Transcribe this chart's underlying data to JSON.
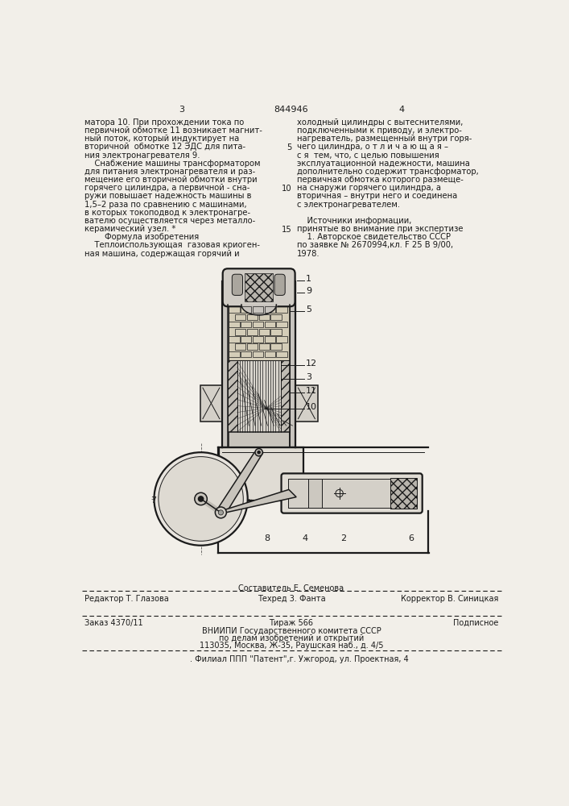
{
  "page_number_left": "3",
  "page_number_center": "844946",
  "page_number_right": "4",
  "bg_color": "#f2efe9",
  "text_color": "#1a1a1a",
  "left_column_text": [
    "матора 10. При прохождении тока по",
    "первичной обмотке 11 возникает магнит-",
    "ный поток, который индуктирует на",
    "вторичной  обмотке 12 ЭДС для пита-",
    "ния электронагревателя 9.",
    "    Снабжение машины трансформатором",
    "для питания электронагревателя и раз-",
    "мещение его вторичной обмотки внутри",
    "горячего цилиндра, а первичной - сна-",
    "ружи повышает надежность машины в",
    "1,5–2 раза по сравнению с машинами,",
    "в которых токоподвод к электронагре-",
    "вателю осуществляется через металло-",
    "керамический узел. *",
    "        Формула изобретения",
    "    Теплоиспользующая  газовая криоген-",
    "ная машина, содержащая горячий и"
  ],
  "right_column_text": [
    "холодный цилиндры с вытеснителями,",
    "подключенными к приводу, и электро-",
    "нагреватель, размещенный внутри горя-",
    "чего цилиндра, о т л и ч а ю щ а я –",
    "с я  тем, что, с целью повышения",
    "эксплуатационной надежности, машина",
    "дополнительно содержит трансформатор,",
    "первичная обмотка которого размеще-",
    "на снаружи горячего цилиндра, а",
    "вторичная – внутри него и соединена",
    "с электронагревателем.",
    "",
    "    Источники информации,",
    "принятые во внимание при экспертизе",
    "    1. Авторское свидетельство СССР",
    "по заявке № 2670994,кл. F 25 В 9/00,",
    "1978."
  ],
  "line_num_map": {
    "3": "5",
    "8": "10",
    "13": "15"
  },
  "footer_line1_left": "Редактор Т. Глазова",
  "footer_line1_center": "Составитель Е. Семенова",
  "footer_line1_right": "Корректор В. Синицкая",
  "footer_tech": "Техред 3. Фанта",
  "footer_order": "Заказ 4370/11",
  "footer_circ": "Тираж 566",
  "footer_sign": "Подписное",
  "footer_vniip1": "ВНИИПИ Государственного комитета СССР",
  "footer_vniip2": "по делам изобретений и открытий",
  "footer_vniip3": "113035, Москва, Ж-35, Раушская наб., д. 4/5",
  "footer_filial": ". Филиал ППП \"Патент\",г. Ужгород, ул. Проектная, 4"
}
